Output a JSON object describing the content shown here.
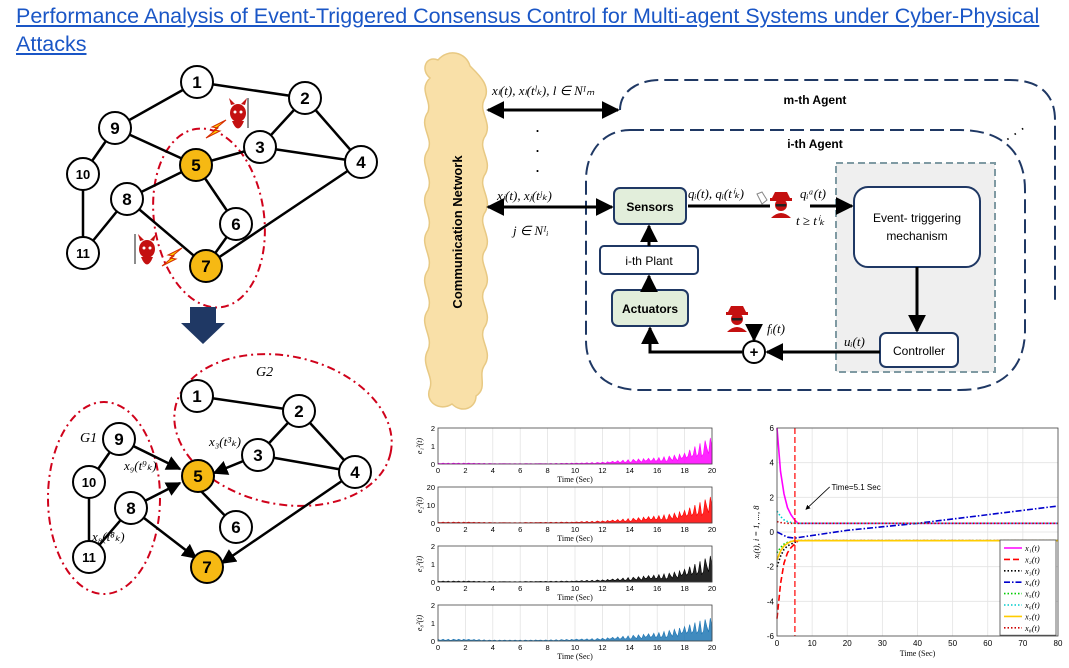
{
  "title": "Performance Analysis of Event-Triggered Consensus Control for Multi-agent Systems under Cyber-Physical Attacks",
  "graph_top": {
    "nodes": [
      "1",
      "2",
      "3",
      "4",
      "5",
      "6",
      "7",
      "8",
      "9",
      "10",
      "11"
    ],
    "attacked_nodes": [
      "5",
      "7"
    ]
  },
  "graph_bottom": {
    "g1_label": "G1",
    "g2_label": "G2",
    "nodes": [
      "1",
      "2",
      "3",
      "4",
      "5",
      "6",
      "7",
      "8",
      "9",
      "10",
      "11"
    ],
    "label_x9": "x₉(t⁹ₖ)",
    "label_x8": "x₈(t⁸ₖ)",
    "label_x3": "x₃(t³ₖ)"
  },
  "block_diagram": {
    "comm_network": "Communication Network",
    "m_agent": "m-th Agent",
    "i_agent": "i-th Agent",
    "sensors": "Sensors",
    "plant": "i-th Plant",
    "actuators": "Actuators",
    "event_mech_line1": "Event- triggering",
    "event_mech_line2": "mechanism",
    "controller": "Controller",
    "lbl_top_link": "xₗ(t), xₗ(tˡₖ),  l ∈ Nᴵₘ",
    "lbl_mid_link": "xⱼ(t), xⱼ(tʲₖ)",
    "lbl_mid_set": "j ∈ Nᴵᵢ",
    "lbl_q": "qᵢ(t), qᵢ(tⁱₖ)",
    "lbl_qa": "qᵢᵃ(t)",
    "lbl_tcond": "t ≥ tⁱₖ",
    "lbl_f": "fᵢ(t)",
    "lbl_u": "uᵢ(t)",
    "plus": "+"
  },
  "colors": {
    "title": "#1a56c6",
    "node_fill_attacked": "#f6b913",
    "agent_border": "#1f3864",
    "box_border": "#1f3864",
    "green_box": "#e2eedb",
    "cloud": "#f9e0a8",
    "attack_red": "#d0021b"
  },
  "chart_data": [
    {
      "type": "area",
      "ylabel": "e₁²(t)",
      "xlabel": "Time (Sec)",
      "xlim": [
        0,
        20
      ],
      "ylim": [
        0,
        2
      ],
      "yticks": [
        "0",
        "1",
        "2"
      ],
      "xticks": [
        "0",
        "2",
        "4",
        "6",
        "8",
        "10",
        "12",
        "14",
        "16",
        "18",
        "20"
      ],
      "color": "#ff00ff",
      "x": [
        0,
        2,
        4,
        6,
        8,
        10,
        12,
        14,
        16,
        17,
        18,
        19,
        20
      ],
      "values": [
        0.05,
        0.05,
        0.03,
        0.03,
        0.03,
        0.05,
        0.1,
        0.25,
        0.35,
        0.45,
        0.6,
        1.1,
        1.5
      ]
    },
    {
      "type": "area",
      "ylabel": "e₂²(t)",
      "xlabel": "Time (Sec)",
      "xlim": [
        0,
        20
      ],
      "ylim": [
        0,
        20
      ],
      "yticks": [
        "0",
        "10",
        "20"
      ],
      "xticks": [
        "0",
        "2",
        "4",
        "6",
        "8",
        "10",
        "12",
        "14",
        "16",
        "18",
        "20"
      ],
      "color": "#ff0000",
      "x": [
        0,
        2,
        4,
        6,
        8,
        10,
        12,
        14,
        16,
        17,
        18,
        19,
        20
      ],
      "values": [
        0.5,
        0.5,
        0.3,
        0.3,
        0.4,
        0.6,
        1.2,
        2.5,
        4,
        5,
        7,
        11,
        15
      ]
    },
    {
      "type": "area",
      "ylabel": "e₃²(t)",
      "xlabel": "Time (Sec)",
      "xlim": [
        0,
        20
      ],
      "ylim": [
        0,
        2
      ],
      "yticks": [
        "0",
        "1",
        "2"
      ],
      "xticks": [
        "0",
        "2",
        "4",
        "6",
        "8",
        "10",
        "12",
        "14",
        "16",
        "18",
        "20"
      ],
      "color": "#000000",
      "x": [
        0,
        2,
        4,
        6,
        8,
        10,
        12,
        14,
        16,
        17,
        18,
        19,
        20
      ],
      "values": [
        0.05,
        0.05,
        0.03,
        0.03,
        0.04,
        0.06,
        0.12,
        0.25,
        0.4,
        0.5,
        0.7,
        1.1,
        1.5
      ]
    },
    {
      "type": "area",
      "ylabel": "e₈²(t)",
      "xlabel": "Time (Sec)",
      "xlim": [
        0,
        20
      ],
      "ylim": [
        0,
        2
      ],
      "yticks": [
        "0",
        "1",
        "2"
      ],
      "xticks": [
        "0",
        "2",
        "4",
        "6",
        "8",
        "10",
        "12",
        "14",
        "16",
        "18",
        "20"
      ],
      "color": "#1f77b4",
      "x": [
        0,
        2,
        4,
        6,
        8,
        10,
        12,
        14,
        16,
        17,
        18,
        19,
        20
      ],
      "values": [
        0.1,
        0.1,
        0.05,
        0.05,
        0.06,
        0.1,
        0.15,
        0.3,
        0.45,
        0.6,
        0.8,
        1.1,
        1.3
      ]
    },
    {
      "type": "line",
      "ylabel": "xᵢ(t), i = 1, ..., 8",
      "xlabel": "Time (Sec)",
      "xlim": [
        0,
        80
      ],
      "ylim": [
        -6,
        6
      ],
      "xticks": [
        "0",
        "10",
        "20",
        "30",
        "40",
        "50",
        "60",
        "70",
        "80"
      ],
      "yticks": [
        "6",
        "4",
        "2",
        "0",
        "-2",
        "-4",
        "-6"
      ],
      "annotation": "Time=5.1 Sec",
      "vline_x": 5.1,
      "legend_position": "bottom-right",
      "series": [
        {
          "name": "x₁(t)",
          "color": "#ff00ff",
          "dash": "solid",
          "x": [
            0,
            1,
            2,
            3,
            4,
            5,
            6,
            80
          ],
          "values": [
            6,
            3.5,
            2.2,
            1.4,
            1.0,
            0.7,
            0.5,
            0.5
          ]
        },
        {
          "name": "x₂(t)",
          "color": "#ff0000",
          "dash": "dashed",
          "x": [
            0,
            1,
            2,
            3,
            4,
            5,
            6,
            80
          ],
          "values": [
            -5,
            -3,
            -1.8,
            -1.2,
            -0.9,
            -0.7,
            -0.5,
            -0.5
          ]
        },
        {
          "name": "x₃(t)",
          "color": "#000000",
          "dash": "dotted",
          "x": [
            0,
            1,
            2,
            3,
            4,
            5,
            6,
            80
          ],
          "values": [
            -2,
            -1.4,
            -1,
            -0.8,
            -0.7,
            -0.6,
            -0.5,
            -0.5
          ]
        },
        {
          "name": "x₄(t)",
          "color": "#0000cc",
          "dash": "dashdot",
          "x": [
            0,
            1,
            2,
            3,
            5,
            10,
            20,
            40,
            60,
            80
          ],
          "values": [
            0,
            -0.1,
            -0.2,
            -0.3,
            -0.35,
            -0.2,
            0.1,
            0.5,
            1.0,
            1.5
          ]
        },
        {
          "name": "x₅(t)",
          "color": "#00cc00",
          "dash": "dotted",
          "x": [
            0,
            1,
            2,
            3,
            4,
            5,
            6,
            80
          ],
          "values": [
            -1.2,
            -0.9,
            -0.7,
            -0.6,
            -0.55,
            -0.5,
            -0.5,
            -0.5
          ]
        },
        {
          "name": "x₆(t)",
          "color": "#00cccc",
          "dash": "dotted",
          "x": [
            0,
            1,
            2,
            3,
            4,
            5,
            6,
            80
          ],
          "values": [
            1.2,
            0.9,
            0.7,
            0.6,
            0.55,
            0.5,
            0.5,
            0.5
          ]
        },
        {
          "name": "x₇(t)",
          "color": "#ffcc00",
          "dash": "solid",
          "x": [
            0,
            1,
            2,
            3,
            4,
            5,
            6,
            80
          ],
          "values": [
            -1.6,
            -1.1,
            -0.8,
            -0.65,
            -0.55,
            -0.5,
            -0.5,
            -0.5
          ]
        },
        {
          "name": "x₈(t)",
          "color": "#cc0000",
          "dash": "dotted",
          "x": [
            0,
            1,
            2,
            3,
            4,
            5,
            6,
            80
          ],
          "values": [
            0.6,
            0.55,
            0.52,
            0.5,
            0.5,
            0.5,
            0.5,
            0.5
          ]
        }
      ]
    }
  ]
}
